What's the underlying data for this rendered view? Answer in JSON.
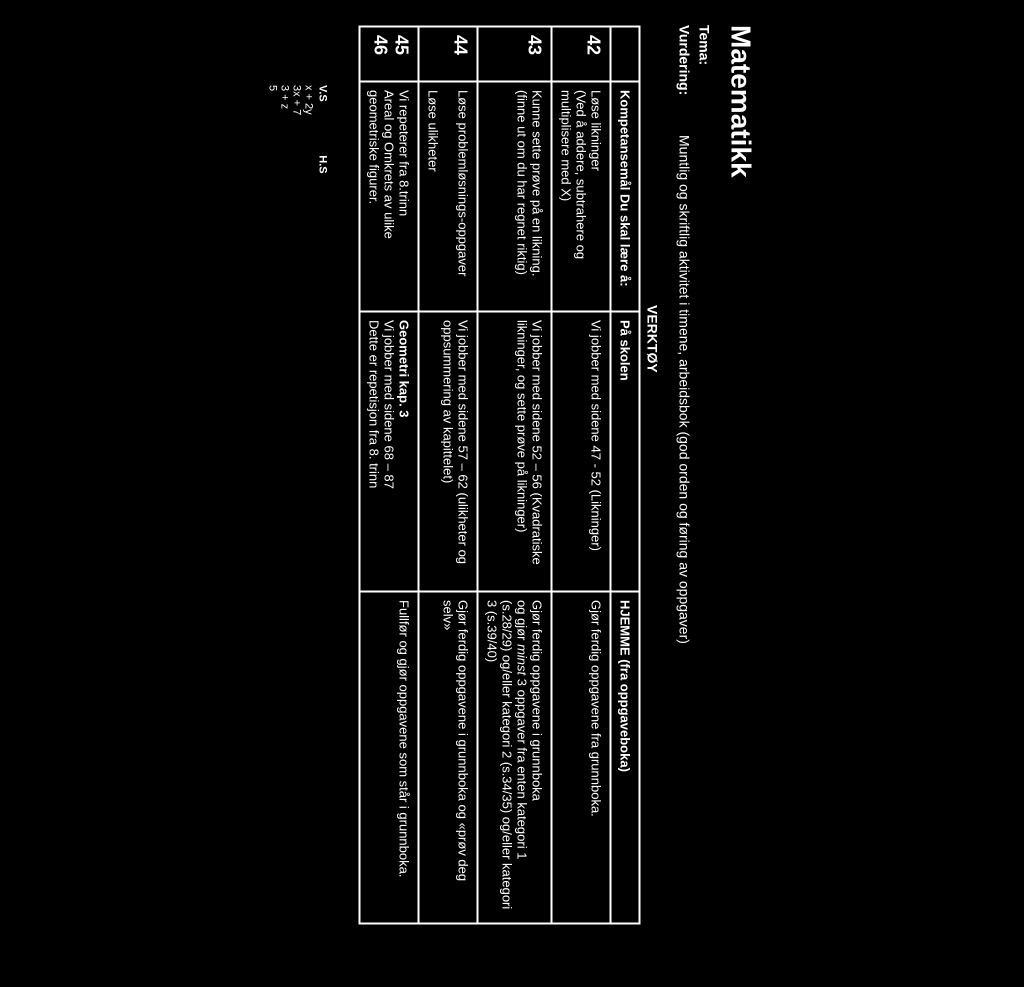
{
  "title": "Matematikk",
  "meta": {
    "tema_label": "Tema:",
    "vurdering_label": "Vurdering:",
    "vurdering_value": "Muntlig og skriftlig aktivitet i timene, arbeidsbok (god orden og føring av oppgaver)"
  },
  "tool_label": "VERKTØY",
  "headers": {
    "blank": "",
    "kompetanse": "Kompetansemål\nDu skal lære å:",
    "skolen": "På skolen",
    "hjemme": "HJEMME (fra oppgaveboka)"
  },
  "rows": [
    {
      "week": "42",
      "kompetanse": "Løse likninger\n(Ved å addere, subtrahere og multiplisere med X)",
      "skolen": "Vi jobber med sidene 47 - 52 (Likninger)",
      "hjemme": "Gjør ferdig oppgavene fra grunnboka."
    },
    {
      "week": "43",
      "kompetanse": "Kunne sette prøve på en likning. (finne ut om du har regnet riktig)",
      "skolen": "Vi jobber med sidene 52 – 56 (Kvadratiske likninger, og sette prøve på likninger)",
      "hjemme": "Gjør ferdig oppgavene i grunnboka\nog gjør minst 3 oppgaver fra enten kategori 1 (s.28/29) og/eller kategori 2 (s.34/35) og/eller kategori 3 (s.39/40)"
    },
    {
      "week": "44",
      "kompetanse": "Løse problemløsnings-oppgaver\n\nLøse ulikheter",
      "skolen": "Vi jobber med sidene 57 – 62 (ulikheter og oppsummering av kapittelet)",
      "hjemme": "Gjør ferdig oppgavene i grunnboka og «prøv deg selv»"
    },
    {
      "week": "45\n46",
      "kompetanse": "Vi repeterer fra 8.trinn\nAreal og Omkrets av ulike geometriske figurer.",
      "skolen": "Geometri kap. 3\nVi jobber med sidene 68 – 87\nDette er repetisjon fra 8. trinn",
      "hjemme": "Fullfør og gjør oppgavene som står i grunnboka."
    }
  ],
  "fragment": {
    "vs": "V.S",
    "hs": "H.S",
    "eq1": "x + 2y",
    "eq2": "3x + 7",
    "eq3": "3 + z",
    "eq4": "5"
  }
}
